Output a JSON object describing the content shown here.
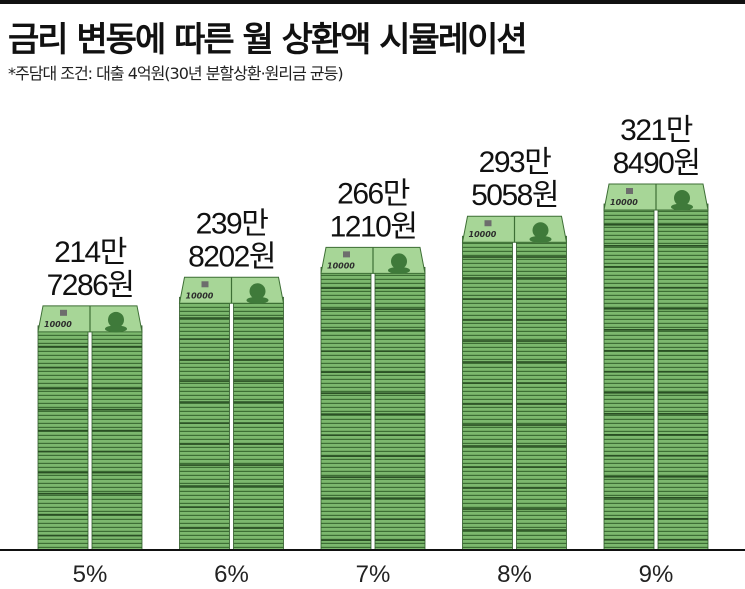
{
  "title": "금리 변동에 따른 월 상환액 시뮬레이션",
  "subtitle": "*주담대 조건: 대출 4억원(30년 분할상환·원리금 균등)",
  "colors": {
    "bill_green": "#7cb86e",
    "bill_stripe": "#3d6e35",
    "bill_top": "#a7d697",
    "axis": "#111111",
    "text": "#111111"
  },
  "chart_data": {
    "type": "bar",
    "title": "금리 변동에 따른 월 상환액 시뮬레이션",
    "categories": [
      "5%",
      "6%",
      "7%",
      "8%",
      "9%"
    ],
    "values": [
      2147286,
      2398202,
      2661210,
      2935058,
      3218490
    ],
    "value_labels": [
      [
        "214만",
        "7286원"
      ],
      [
        "239만",
        "8202원"
      ],
      [
        "266만",
        "1210원"
      ],
      [
        "293만",
        "5058원"
      ],
      [
        "321만",
        "8490원"
      ]
    ],
    "bill_denomination": "10000",
    "ylim": [
      0,
      3218490
    ],
    "grid": false
  }
}
